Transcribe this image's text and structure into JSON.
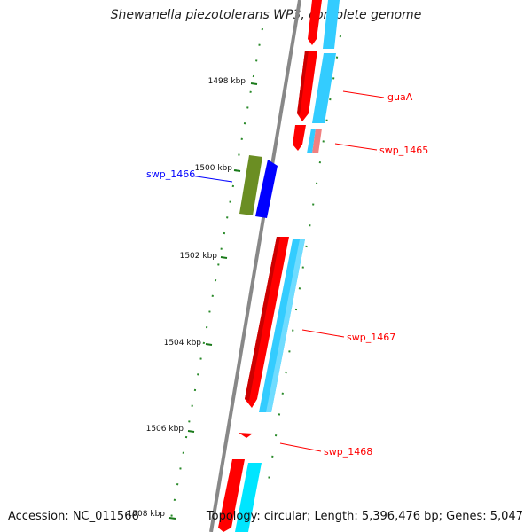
{
  "title": "Shewanella piezotolerans WP3, complete genome",
  "footer": {
    "accession": "Accession: NC_011566",
    "summary": "Topology: circular; Length: 5,396,476 bp; Genes: 5,047"
  },
  "scale": {
    "kbp_labels": [
      "1498 kbp",
      "1500 kbp",
      "1502 kbp",
      "1504 kbp",
      "1506 kbp",
      "1508 kbp"
    ]
  },
  "genes": [
    {
      "name": "guaA",
      "strand": "forward",
      "color": "#ff0000"
    },
    {
      "name": "swp_1465",
      "strand": "forward",
      "color": "#ff0000"
    },
    {
      "name": "swp_1466",
      "strand": "reverse",
      "color": "#0000ff"
    },
    {
      "name": "swp_1467",
      "strand": "forward",
      "color": "#ff0000"
    },
    {
      "name": "swp_1468",
      "strand": "forward",
      "color": "#ff0000"
    }
  ],
  "colors": {
    "cds_forward": "#ff0000",
    "cds_reverse": "#0000ff",
    "gene_forward": "#33ccff",
    "gene_reverse": "#6b8e23",
    "backbone": "#888888",
    "ticks": "#1a7a1a"
  }
}
